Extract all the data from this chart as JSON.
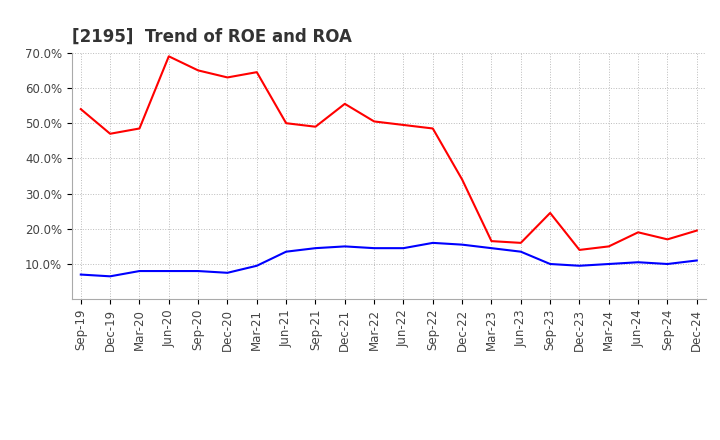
{
  "title": "[2195]  Trend of ROE and ROA",
  "x_labels": [
    "Sep-19",
    "Dec-19",
    "Mar-20",
    "Jun-20",
    "Sep-20",
    "Dec-20",
    "Mar-21",
    "Jun-21",
    "Sep-21",
    "Dec-21",
    "Mar-22",
    "Jun-22",
    "Sep-22",
    "Dec-22",
    "Mar-23",
    "Jun-23",
    "Sep-23",
    "Dec-23",
    "Mar-24",
    "Jun-24",
    "Sep-24",
    "Dec-24"
  ],
  "roe": [
    54.0,
    47.0,
    48.5,
    69.0,
    65.0,
    63.0,
    64.5,
    50.0,
    49.0,
    55.5,
    50.5,
    49.5,
    48.5,
    34.0,
    16.5,
    16.0,
    24.5,
    14.0,
    15.0,
    19.0,
    17.0,
    19.5
  ],
  "roa": [
    7.0,
    6.5,
    8.0,
    8.0,
    8.0,
    7.5,
    9.5,
    13.5,
    14.5,
    15.0,
    14.5,
    14.5,
    16.0,
    15.5,
    14.5,
    13.5,
    10.0,
    9.5,
    10.0,
    10.5,
    10.0,
    11.0
  ],
  "roe_color": "#ff0000",
  "roa_color": "#0000ff",
  "ylim": [
    0,
    70
  ],
  "yticks": [
    10,
    20,
    30,
    40,
    50,
    60,
    70
  ],
  "ytick_labels": [
    "10.0%",
    "20.0%",
    "30.0%",
    "40.0%",
    "50.0%",
    "60.0%",
    "70.0%"
  ],
  "background_color": "#ffffff",
  "grid_color": "#bbbbbb",
  "title_fontsize": 12,
  "title_color": "#333333",
  "legend_fontsize": 10,
  "tick_fontsize": 8.5
}
